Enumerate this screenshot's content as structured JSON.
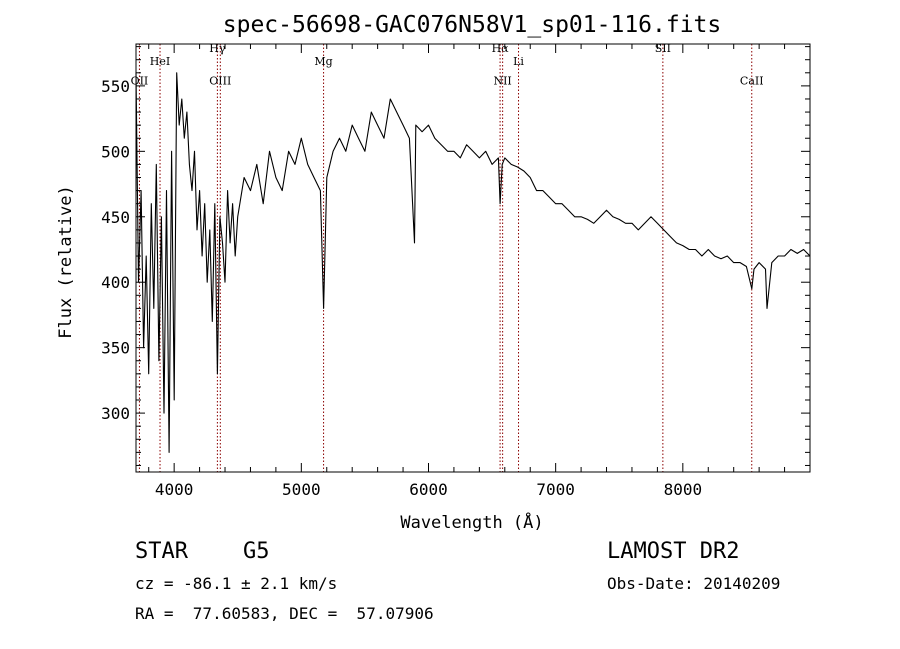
{
  "chart_data": {
    "type": "line",
    "title": "spec-56698-GAC076N58V1_sp01-116.fits",
    "xlabel": "Wavelength (Å)",
    "ylabel": "Flux (relative)",
    "xlim": [
      3700,
      9000
    ],
    "ylim": [
      255,
      582
    ],
    "x_ticks": [
      4000,
      5000,
      6000,
      7000,
      8000
    ],
    "y_ticks": [
      300,
      350,
      400,
      450,
      500,
      550
    ],
    "grid": false,
    "line_color": "#000000",
    "marker_color": "#8b0000",
    "lines": [
      {
        "label": "OII",
        "x": 3727,
        "label_y": 551
      },
      {
        "label": "HeI",
        "x": 3889,
        "label_y": 566
      },
      {
        "label": "Hγ",
        "x": 4340,
        "label_y": 576
      },
      {
        "label": "OIII",
        "x": 4363,
        "label_y": 551
      },
      {
        "label": "Mg",
        "x": 5175,
        "label_y": 566
      },
      {
        "label": "Hα",
        "x": 6563,
        "label_y": 576
      },
      {
        "label": "NII",
        "x": 6583,
        "label_y": 551
      },
      {
        "label": "Li",
        "x": 6708,
        "label_y": 566
      },
      {
        "label": "SII",
        "x": 7843,
        "label_y": 576
      },
      {
        "label": "CaII",
        "x": 8542,
        "label_y": 551
      }
    ],
    "series": [
      {
        "x": [
          3700,
          3720,
          3740,
          3760,
          3780,
          3800,
          3820,
          3840,
          3860,
          3880,
          3900,
          3920,
          3940,
          3960,
          3980,
          4000,
          4020,
          4040,
          4060,
          4080,
          4100,
          4120,
          4140,
          4160,
          4180,
          4200,
          4220,
          4240,
          4260,
          4280,
          4300,
          4320,
          4340,
          4360,
          4380,
          4400,
          4420,
          4440,
          4460,
          4480,
          4500,
          4550,
          4600,
          4650,
          4700,
          4750,
          4800,
          4850,
          4900,
          4950,
          5000,
          5050,
          5100,
          5150,
          5175,
          5200,
          5250,
          5300,
          5350,
          5400,
          5450,
          5500,
          5550,
          5600,
          5650,
          5700,
          5750,
          5800,
          5850,
          5890,
          5900,
          5950,
          6000,
          6050,
          6100,
          6150,
          6200,
          6250,
          6300,
          6350,
          6400,
          6450,
          6500,
          6550,
          6563,
          6580,
          6600,
          6650,
          6700,
          6750,
          6800,
          6850,
          6900,
          6950,
          7000,
          7050,
          7100,
          7150,
          7200,
          7250,
          7300,
          7350,
          7400,
          7450,
          7500,
          7550,
          7600,
          7650,
          7700,
          7750,
          7800,
          7850,
          7900,
          7950,
          8000,
          8050,
          8100,
          8150,
          8200,
          8250,
          8300,
          8350,
          8400,
          8450,
          8500,
          8542,
          8560,
          8600,
          8650,
          8662,
          8700,
          8750,
          8800,
          8850,
          8900,
          8950,
          9000
        ],
        "values": [
          560,
          400,
          470,
          350,
          420,
          330,
          460,
          380,
          490,
          340,
          450,
          300,
          470,
          270,
          500,
          310,
          560,
          520,
          540,
          510,
          530,
          490,
          470,
          500,
          440,
          470,
          420,
          460,
          400,
          440,
          370,
          460,
          330,
          450,
          430,
          400,
          470,
          430,
          460,
          420,
          450,
          480,
          470,
          490,
          460,
          500,
          480,
          470,
          500,
          490,
          510,
          490,
          480,
          470,
          380,
          480,
          500,
          510,
          500,
          520,
          510,
          500,
          530,
          520,
          510,
          540,
          530,
          520,
          510,
          430,
          520,
          515,
          520,
          510,
          505,
          500,
          500,
          495,
          505,
          500,
          495,
          500,
          490,
          495,
          460,
          490,
          495,
          490,
          488,
          485,
          480,
          470,
          470,
          465,
          460,
          460,
          455,
          450,
          450,
          448,
          445,
          450,
          455,
          450,
          448,
          445,
          445,
          440,
          445,
          450,
          445,
          440,
          435,
          430,
          428,
          425,
          425,
          420,
          425,
          420,
          418,
          420,
          415,
          415,
          412,
          395,
          410,
          415,
          410,
          380,
          415,
          420,
          420,
          425,
          422,
          425,
          420
        ]
      }
    ]
  },
  "info": {
    "object_class": "STAR",
    "subclass": "G5",
    "survey": "LAMOST DR2",
    "cz": "cz = -86.1 ± 2.1 km/s",
    "obs_date": "Obs-Date: 20140209",
    "coords": "RA =  77.60583, DEC =  57.07906"
  }
}
